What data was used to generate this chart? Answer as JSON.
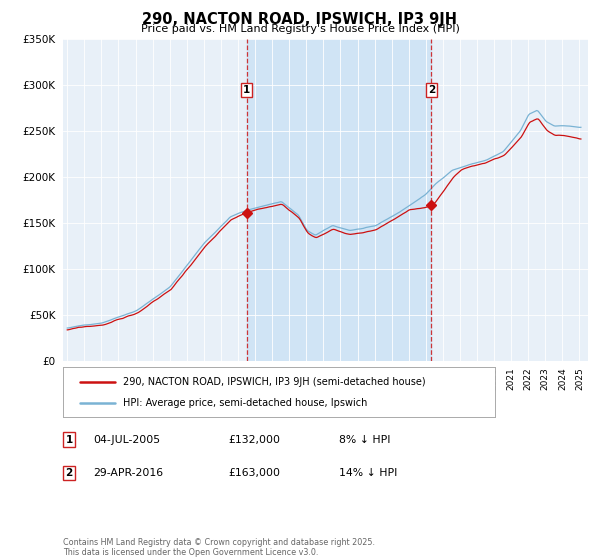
{
  "title": "290, NACTON ROAD, IPSWICH, IP3 9JH",
  "subtitle": "Price paid vs. HM Land Registry's House Price Index (HPI)",
  "ylim": [
    0,
    350000
  ],
  "xlim_start": 1994.75,
  "xlim_end": 2025.5,
  "hpi_color": "#7ab3d4",
  "price_color": "#cc1111",
  "vline_color": "#cc2222",
  "shade_color": "#d0e4f5",
  "bg_color": "#e8f0f8",
  "grid_color": "#ffffff",
  "marker1_year": 2005.5,
  "marker2_year": 2016.33,
  "marker1_price": 132000,
  "marker2_price": 163000,
  "marker1_label": "1",
  "marker2_label": "2",
  "legend_entry1": "290, NACTON ROAD, IPSWICH, IP3 9JH (semi-detached house)",
  "legend_entry2": "HPI: Average price, semi-detached house, Ipswich",
  "table_rows": [
    {
      "num": "1",
      "date": "04-JUL-2005",
      "price": "£132,000",
      "hpi": "8% ↓ HPI"
    },
    {
      "num": "2",
      "date": "29-APR-2016",
      "price": "£163,000",
      "hpi": "14% ↓ HPI"
    }
  ],
  "footer": "Contains HM Land Registry data © Crown copyright and database right 2025.\nThis data is licensed under the Open Government Licence v3.0."
}
